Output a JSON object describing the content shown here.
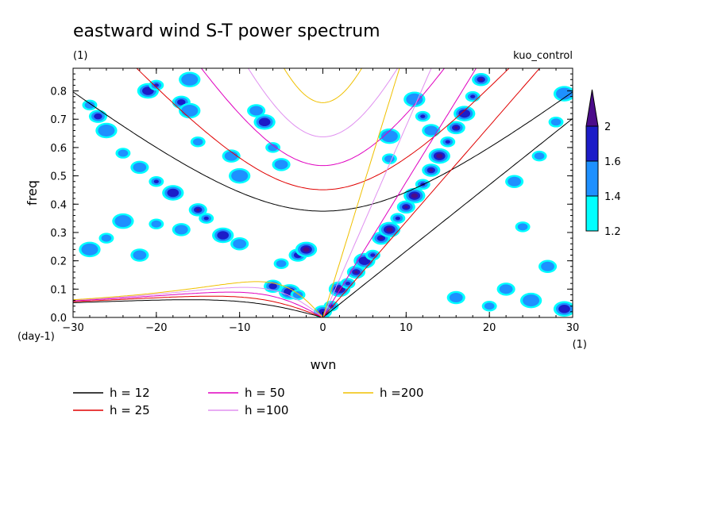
{
  "title": "eastward wind S-T power spectrum",
  "subtitle_left": "(1)",
  "subtitle_right": "kuo_control",
  "chart_data": {
    "type": "heatmap",
    "xlabel": "wvn",
    "ylabel": "freq",
    "x_unit_label": "(1)",
    "y_unit_label": "(day-1)",
    "xlim": [
      -30,
      30
    ],
    "ylim": [
      0,
      0.88
    ],
    "xticks": [
      -30,
      -20,
      -10,
      0,
      10,
      20,
      30
    ],
    "xtick_labels": [
      "−30",
      "−20",
      "−10",
      "0",
      "10",
      "20",
      "30"
    ],
    "yticks": [
      0,
      0.1,
      0.2,
      0.3,
      0.4,
      0.5,
      0.6,
      0.7,
      0.8
    ],
    "ytick_labels": [
      "0.0",
      "0.1",
      "0.2",
      "0.3",
      "0.4",
      "0.5",
      "0.6",
      "0.7",
      "0.8"
    ],
    "contour_levels": [
      1.2,
      1.4,
      1.6,
      2
    ],
    "colorbar": {
      "labels": [
        "1.2",
        "1.4",
        "1.6",
        "2"
      ],
      "colors": [
        "#00ffff",
        "#1e90ff",
        "#1c1cc8",
        "#4b0c8a"
      ],
      "extend": "max"
    },
    "dispersion_curves": [
      {
        "name": "h = 12",
        "h": 12,
        "color": "#000000"
      },
      {
        "name": "h = 25",
        "h": 25,
        "color": "#e00000"
      },
      {
        "name": "h = 50",
        "h": 50,
        "color": "#e000c0"
      },
      {
        "name": "h =100",
        "h": 100,
        "color": "#e090f0"
      },
      {
        "name": "h =200",
        "h": 200,
        "color": "#f0c000"
      }
    ],
    "power_blobs": [
      {
        "wvn": 1,
        "freq": 0.04,
        "level": 2
      },
      {
        "wvn": 0,
        "freq": 0.02,
        "level": 1.6
      },
      {
        "wvn": 2,
        "freq": 0.1,
        "level": 2
      },
      {
        "wvn": 3,
        "freq": 0.12,
        "level": 1.6
      },
      {
        "wvn": 4,
        "freq": 0.16,
        "level": 2
      },
      {
        "wvn": 5,
        "freq": 0.2,
        "level": 1.6
      },
      {
        "wvn": 6,
        "freq": 0.22,
        "level": 2
      },
      {
        "wvn": 7,
        "freq": 0.28,
        "level": 2
      },
      {
        "wvn": 8,
        "freq": 0.31,
        "level": 2
      },
      {
        "wvn": 9,
        "freq": 0.35,
        "level": 1.6
      },
      {
        "wvn": 10,
        "freq": 0.39,
        "level": 2
      },
      {
        "wvn": 11,
        "freq": 0.43,
        "level": 2
      },
      {
        "wvn": 12,
        "freq": 0.47,
        "level": 2
      },
      {
        "wvn": 13,
        "freq": 0.52,
        "level": 2
      },
      {
        "wvn": 14,
        "freq": 0.57,
        "level": 2
      },
      {
        "wvn": 15,
        "freq": 0.62,
        "level": 2
      },
      {
        "wvn": 16,
        "freq": 0.67,
        "level": 2
      },
      {
        "wvn": 17,
        "freq": 0.72,
        "level": 1.6
      },
      {
        "wvn": 18,
        "freq": 0.78,
        "level": 2
      },
      {
        "wvn": 19,
        "freq": 0.84,
        "level": 2
      },
      {
        "wvn": 11,
        "freq": 0.77,
        "level": 1.4
      },
      {
        "wvn": 12,
        "freq": 0.71,
        "level": 1.6
      },
      {
        "wvn": 13,
        "freq": 0.66,
        "level": 1.4
      },
      {
        "wvn": 8,
        "freq": 0.64,
        "level": 1.4
      },
      {
        "wvn": 8,
        "freq": 0.56,
        "level": 1.4
      },
      {
        "wvn": -3,
        "freq": 0.22,
        "level": 1.6
      },
      {
        "wvn": -2,
        "freq": 0.24,
        "level": 2
      },
      {
        "wvn": -5,
        "freq": 0.19,
        "level": 1.4
      },
      {
        "wvn": -6,
        "freq": 0.11,
        "level": 1.6
      },
      {
        "wvn": -4,
        "freq": 0.09,
        "level": 1.6
      },
      {
        "wvn": -3,
        "freq": 0.08,
        "level": 1.4
      },
      {
        "wvn": -10,
        "freq": 0.26,
        "level": 1.4
      },
      {
        "wvn": -12,
        "freq": 0.29,
        "level": 1.6
      },
      {
        "wvn": -14,
        "freq": 0.35,
        "level": 1.6
      },
      {
        "wvn": -15,
        "freq": 0.38,
        "level": 2
      },
      {
        "wvn": -18,
        "freq": 0.44,
        "level": 1.6
      },
      {
        "wvn": -20,
        "freq": 0.48,
        "level": 1.6
      },
      {
        "wvn": -22,
        "freq": 0.53,
        "level": 1.4
      },
      {
        "wvn": -21,
        "freq": 0.8,
        "level": 1.6
      },
      {
        "wvn": -20,
        "freq": 0.82,
        "level": 2
      },
      {
        "wvn": -17,
        "freq": 0.76,
        "level": 1.6
      },
      {
        "wvn": -16,
        "freq": 0.73,
        "level": 1.4
      },
      {
        "wvn": -28,
        "freq": 0.75,
        "level": 1.4
      },
      {
        "wvn": -27,
        "freq": 0.71,
        "level": 1.6
      },
      {
        "wvn": -26,
        "freq": 0.66,
        "level": 1.4
      },
      {
        "wvn": -24,
        "freq": 0.58,
        "level": 1.4
      },
      {
        "wvn": -8,
        "freq": 0.73,
        "level": 1.4
      },
      {
        "wvn": -7,
        "freq": 0.69,
        "level": 1.6
      },
      {
        "wvn": -6,
        "freq": 0.6,
        "level": 1.4
      },
      {
        "wvn": -5,
        "freq": 0.54,
        "level": 1.4
      },
      {
        "wvn": -24,
        "freq": 0.34,
        "level": 1.4
      },
      {
        "wvn": -20,
        "freq": 0.33,
        "level": 1.4
      },
      {
        "wvn": -17,
        "freq": 0.31,
        "level": 1.4
      },
      {
        "wvn": -16,
        "freq": 0.84,
        "level": 1.4
      },
      {
        "wvn": -15,
        "freq": 0.62,
        "level": 1.4
      },
      {
        "wvn": -11,
        "freq": 0.57,
        "level": 1.4
      },
      {
        "wvn": -10,
        "freq": 0.5,
        "level": 1.4
      },
      {
        "wvn": -26,
        "freq": 0.28,
        "level": 1.4
      },
      {
        "wvn": -22,
        "freq": 0.22,
        "level": 1.4
      },
      {
        "wvn": -28,
        "freq": 0.24,
        "level": 1.4
      },
      {
        "wvn": 24,
        "freq": 0.32,
        "level": 1.4
      },
      {
        "wvn": 27,
        "freq": 0.18,
        "level": 1.4
      },
      {
        "wvn": 29,
        "freq": 0.79,
        "level": 1.4
      },
      {
        "wvn": 28,
        "freq": 0.69,
        "level": 1.4
      },
      {
        "wvn": 22,
        "freq": 0.1,
        "level": 1.4
      },
      {
        "wvn": 25,
        "freq": 0.06,
        "level": 1.4
      },
      {
        "wvn": 20,
        "freq": 0.04,
        "level": 1.4
      },
      {
        "wvn": 16,
        "freq": 0.07,
        "level": 1.4
      },
      {
        "wvn": 29,
        "freq": 0.03,
        "level": 1.6
      },
      {
        "wvn": 26,
        "freq": 0.57,
        "level": 1.4
      },
      {
        "wvn": 23,
        "freq": 0.48,
        "level": 1.4
      }
    ]
  }
}
